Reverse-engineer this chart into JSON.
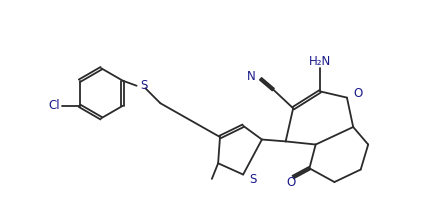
{
  "figsize": [
    4.4,
    2.14
  ],
  "dpi": 100,
  "bg_color": "#ffffff",
  "line_color": "#2a2a2a",
  "lw": 1.3,
  "text_color": "#1a1a8a",
  "font_size": 8.5,
  "xlim": [
    -1.6,
    4.3
  ],
  "ylim": [
    -1.6,
    1.8
  ]
}
